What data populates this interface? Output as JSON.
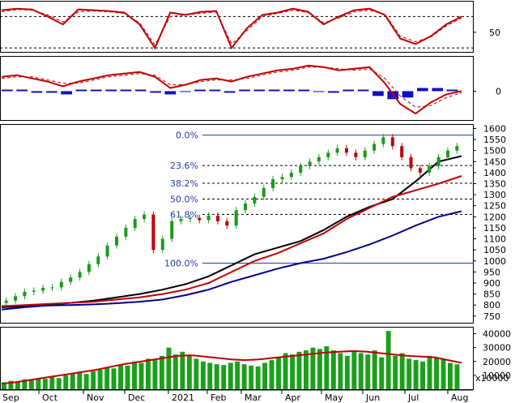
{
  "chart_data": [
    {
      "panel": "rsi",
      "type": "line",
      "yticks": [
        50
      ],
      "ref_levels": [
        70,
        30
      ],
      "series": [
        {
          "color": "#c00000",
          "values": [
            78,
            80,
            79,
            70,
            60,
            79,
            78,
            77,
            75,
            60,
            30,
            75,
            72,
            76,
            77,
            30,
            55,
            72,
            75,
            80,
            76,
            60,
            70,
            78,
            80,
            72,
            42,
            35,
            45,
            60,
            70
          ]
        },
        {
          "color": "#c00000",
          "dashed": true,
          "values": [
            76,
            79,
            78,
            72,
            63,
            76,
            77,
            76,
            74,
            62,
            34,
            70,
            72,
            74,
            76,
            35,
            52,
            70,
            74,
            78,
            75,
            62,
            68,
            76,
            78,
            73,
            45,
            38,
            44,
            58,
            68
          ]
        }
      ]
    },
    {
      "panel": "macd",
      "type": "line",
      "yticks": [
        0
      ],
      "series": [
        {
          "color": "#c00000",
          "values": [
            9,
            10,
            8,
            6,
            3,
            6,
            8,
            10,
            11,
            12,
            9,
            2,
            4,
            7,
            8,
            6,
            9,
            11,
            13,
            14,
            16,
            15,
            13,
            14,
            15,
            5,
            -8,
            -14,
            -7,
            -2,
            0
          ]
        },
        {
          "color": "#c00000",
          "dashed": true,
          "values": [
            8,
            9,
            9,
            7,
            5,
            5,
            7,
            9,
            10,
            11,
            10,
            4,
            4,
            6,
            7,
            7,
            8,
            10,
            12,
            13,
            15,
            15,
            14,
            13,
            14,
            8,
            -3,
            -10,
            -9,
            -4,
            -1
          ]
        },
        {
          "color": "#1010c0",
          "type": "histogram",
          "values": [
            1,
            1,
            -1,
            -1,
            -2,
            1,
            1,
            1,
            1,
            1,
            -1,
            -2,
            0,
            1,
            1,
            -1,
            1,
            1,
            1,
            1,
            1,
            0,
            -1,
            1,
            1,
            -3,
            -5,
            -4,
            2,
            2,
            1
          ]
        }
      ]
    },
    {
      "panel": "price",
      "type": "candlestick",
      "x_labels": [
        "Sep",
        "Oct",
        "Nov",
        "Dec",
        "2021",
        "Feb",
        "Mar",
        "Apr",
        "May",
        "Jun",
        "Jul",
        "Aug"
      ],
      "ylim": [
        720,
        1620
      ],
      "yticks": [
        750,
        800,
        850,
        900,
        950,
        1000,
        1050,
        1100,
        1150,
        1200,
        1250,
        1300,
        1350,
        1400,
        1450,
        1500,
        1550,
        1600
      ],
      "fibonacci": [
        {
          "label": "0.0%",
          "value": 1570
        },
        {
          "label": "23.6%",
          "value": 1432
        },
        {
          "label": "38.2%",
          "value": 1352
        },
        {
          "label": "50.0%",
          "value": 1280
        },
        {
          "label": "61.8%",
          "value": 1211
        },
        {
          "label": "100.0%",
          "value": 990
        }
      ],
      "close": [
        820,
        840,
        860,
        865,
        878,
        880,
        905,
        925,
        950,
        985,
        1020,
        1070,
        1110,
        1150,
        1190,
        1210,
        1050,
        1100,
        1180,
        1190,
        1195,
        1185,
        1205,
        1180,
        1160,
        1230,
        1260,
        1290,
        1330,
        1370,
        1380,
        1400,
        1430,
        1450,
        1470,
        1490,
        1510,
        1490,
        1470,
        1500,
        1530,
        1560,
        1520,
        1470,
        1420,
        1400,
        1430,
        1470,
        1500,
        1520
      ],
      "up_color": "#1a9a1a",
      "down_color": "#c00000",
      "series": [
        {
          "name": "",
          "color": "#000000",
          "values": [
            790,
            795,
            800,
            810,
            820,
            835,
            850,
            870,
            895,
            930,
            980,
            1030,
            1060,
            1090,
            1140,
            1200,
            1245,
            1280,
            1360,
            1450,
            1475
          ]
        },
        {
          "name": "",
          "color": "#c00000",
          "values": [
            795,
            800,
            805,
            810,
            815,
            825,
            835,
            850,
            870,
            900,
            950,
            1000,
            1035,
            1080,
            1125,
            1190,
            1240,
            1290,
            1320,
            1350,
            1385
          ]
        },
        {
          "name": "",
          "color": "#00008b",
          "values": [
            780,
            790,
            798,
            800,
            803,
            808,
            815,
            825,
            845,
            870,
            905,
            935,
            965,
            990,
            1010,
            1040,
            1075,
            1115,
            1160,
            1200,
            1225
          ]
        }
      ]
    },
    {
      "panel": "volume",
      "type": "bar",
      "y_unit": "x10000",
      "yticks": [
        10000,
        20000,
        30000,
        40000
      ],
      "ylim": [
        0,
        45000
      ],
      "bar_color": "#1aa01a",
      "values": [
        5000,
        6000,
        5500,
        7000,
        6500,
        8000,
        7500,
        9000,
        8000,
        10000,
        11000,
        12000,
        11000,
        13000,
        14000,
        16000,
        15000,
        18000,
        17000,
        20000,
        19000,
        22000,
        21000,
        24000,
        30000,
        25000,
        27000,
        24000,
        22000,
        20000,
        19000,
        18000,
        17500,
        19000,
        20000,
        18000,
        17000,
        16500,
        19000,
        21000,
        23000,
        26000,
        25000,
        27000,
        28000,
        30000,
        29000,
        31000,
        28000,
        26000,
        24000,
        27000,
        26000,
        25000,
        28000,
        23000,
        42000,
        24000,
        26000,
        22000,
        21000,
        20000,
        24000,
        23000,
        22000,
        19000,
        18000
      ],
      "series": [
        {
          "name": "",
          "color": "#c00000",
          "values": [
            4000,
            5000,
            6500,
            8000,
            9500,
            11000,
            12500,
            14000,
            16000,
            18000,
            19500,
            21000,
            22500,
            24000,
            24500,
            23500,
            22500,
            21500,
            21000,
            21500,
            22500,
            23500,
            24500,
            25500,
            26500,
            27000,
            27500,
            27000,
            26000,
            25000,
            24000,
            23500,
            23000,
            21000,
            19000
          ]
        }
      ]
    }
  ]
}
